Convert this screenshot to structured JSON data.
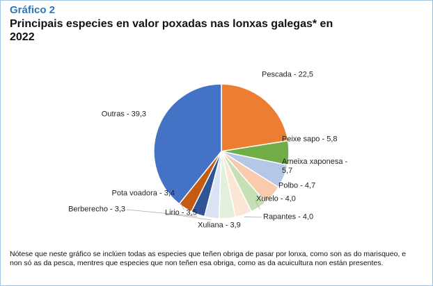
{
  "chart_data": {
    "type": "pie",
    "kicker": "Gráfico 2",
    "title": "Principais especies en valor poxadas nas lonxas galegas* en 2022",
    "values": [
      22.5,
      5.8,
      5.7,
      4.7,
      4.0,
      4.0,
      3.9,
      3.5,
      3.3,
      3.4,
      39.3
    ],
    "value_labels": [
      "Pescada - 22,5",
      "Peixe sapo - 5,8",
      "Ameixa xaponesa - 5,7",
      "Polbo - 4,7",
      "Xurelo - 4,0",
      "Rapantes - 4,0",
      "Xuliana - 3,9",
      "Lirio - 3,5",
      "Berberecho - 3,3",
      "Pota voadora - 3,4",
      "Outras - 39,3"
    ],
    "colors": [
      "#ed7d31",
      "#70ad47",
      "#b4c7e7",
      "#f8cbad",
      "#c5e0b4",
      "#fbe5d6",
      "#e2efda",
      "#dae3f3",
      "#2f5597",
      "#c55a11",
      "#4472c4"
    ],
    "note": "Nótese que neste gráfico se inclúen todas as especies que teñen obriga de pasar por lonxa, como son as do marisqueo, e non só as da pesca, mentres que especies que non teñen esa obriga, como as da acuicultura non están presentes."
  }
}
